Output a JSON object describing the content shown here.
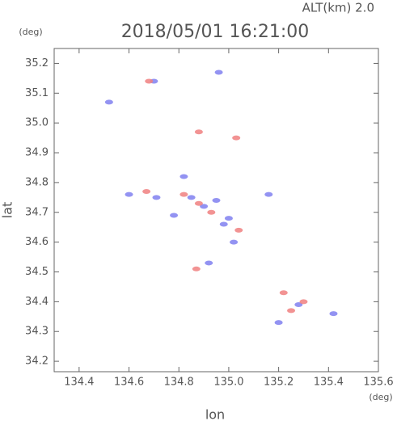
{
  "chart_data": {
    "type": "scatter",
    "title": "2018/05/01 16:21:00",
    "subtitle": "ALT(km) 2.0",
    "x_label": "lon",
    "y_label": "lat",
    "x_unit": "(deg)",
    "y_unit": "(deg)",
    "xlim": [
      134.3,
      135.6
    ],
    "ylim": [
      34.165,
      35.25
    ],
    "xticks": [
      134.4,
      134.6,
      134.8,
      {
        "value": 135.0,
        "label": "135.0"
      },
      135.2,
      135.4,
      135.6
    ],
    "yticks": [
      34.2,
      34.3,
      34.4,
      34.5,
      34.6,
      34.7,
      34.8,
      34.9,
      {
        "value": 35.0,
        "label": "35.0"
      },
      35.1,
      35.2
    ],
    "series": [
      {
        "color": "#8080f0",
        "x": [
          134.52,
          134.7,
          134.82,
          134.6,
          134.85,
          134.95,
          135.0,
          135.02,
          134.92,
          135.28,
          135.2,
          135.42,
          134.96,
          134.9,
          134.78,
          135.16,
          134.71,
          134.98
        ],
        "values": [
          35.07,
          35.14,
          34.82,
          34.76,
          34.75,
          34.74,
          34.68,
          34.6,
          34.53,
          34.39,
          34.33,
          34.36,
          35.17,
          34.72,
          34.69,
          34.76,
          34.75,
          34.66
        ]
      },
      {
        "color": "#f08080",
        "x": [
          134.68,
          134.88,
          135.03,
          134.67,
          134.88,
          135.04,
          134.87,
          135.22,
          135.25,
          134.82,
          134.93,
          135.3
        ],
        "values": [
          35.14,
          34.97,
          34.95,
          34.77,
          34.73,
          34.64,
          34.51,
          34.43,
          34.37,
          34.76,
          34.7,
          34.4
        ]
      }
    ]
  }
}
